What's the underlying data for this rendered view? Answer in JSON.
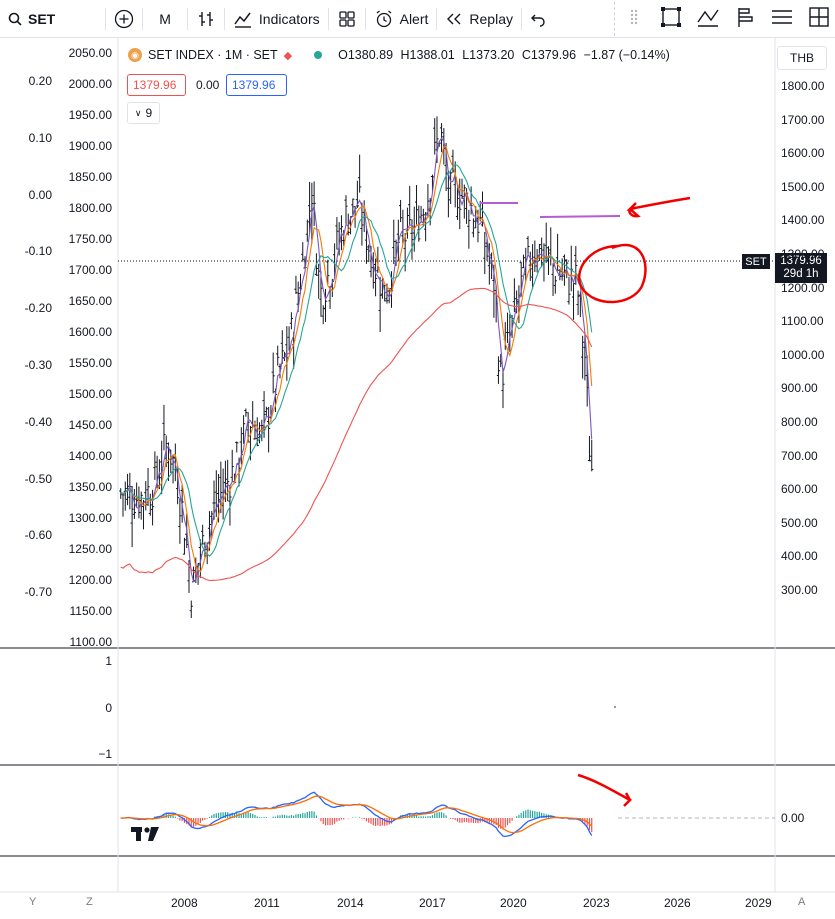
{
  "toolbar": {
    "symbol": "SET",
    "interval": "M",
    "indicators_label": "Indicators",
    "alert_label": "Alert",
    "replay_label": "Replay"
  },
  "legend": {
    "title": "SET INDEX · 1M · SET",
    "open": "O1380.89",
    "high": "H1388.01",
    "low": "L1373.20",
    "close": "C1379.96",
    "change": "−1.87 (−0.14%)",
    "box_left": "1379.96",
    "box_mid": "0.00",
    "box_right": "1379.96",
    "hidden_count": "9"
  },
  "currency": "THB",
  "price_tag": {
    "symbol": "SET",
    "price": "1379.96",
    "countdown": "29d 1h"
  },
  "left_axis": [
    "2050.00",
    "2000.00",
    "1950.00",
    "1900.00",
    "1850.00",
    "1800.00",
    "1750.00",
    "1700.00",
    "1650.00",
    "1600.00",
    "1550.00",
    "1500.00",
    "1450.00",
    "1400.00",
    "1350.00",
    "1300.00",
    "1250.00",
    "1200.00",
    "1150.00",
    "1100.00"
  ],
  "far_left_axis": [
    "0.20",
    "0.10",
    "0.00",
    "-0.10",
    "-0.20",
    "-0.30",
    "-0.40",
    "-0.50",
    "-0.60",
    "-0.70"
  ],
  "right_axis": [
    "1800.00",
    "1700.00",
    "1600.00",
    "1500.00",
    "1400.00",
    "1300.00",
    "1200.00",
    "1100.00",
    "1000.00",
    "900.00",
    "800.00",
    "700.00",
    "600.00",
    "500.00",
    "400.00",
    "300.00"
  ],
  "pane2_axis": [
    "1",
    "0",
    "−1"
  ],
  "macd_axis": "0.00",
  "time_axis": [
    "2008",
    "2011",
    "2014",
    "2017",
    "2020",
    "2023",
    "2026",
    "2029"
  ],
  "bottom_buttons": {
    "y": "Y",
    "z": "Z",
    "a": "A"
  },
  "colors": {
    "ma_red": "#ef5350",
    "ma_green": "#26a69a",
    "ma_orange": "#f57c00",
    "ma_purple": "#7e57c2",
    "macd_blue": "#2962ff",
    "signal_orange": "#ff6d00",
    "annotation": "#f20000",
    "hline": "#b45cd6"
  },
  "chart_data": {
    "type": "line",
    "title": "SET INDEX · 1M · SET",
    "x": [
      2006.5,
      2007,
      2007.5,
      2008,
      2008.3,
      2008.6,
      2008.9,
      2009.2,
      2009.6,
      2010,
      2010.5,
      2011,
      2011.5,
      2012,
      2012.5,
      2013,
      2013.3,
      2013.6,
      2014,
      2014.5,
      2015,
      2015.5,
      2016,
      2016.5,
      2017,
      2017.5,
      2018,
      2018.3,
      2018.6,
      2019,
      2019.5,
      2020,
      2020.2,
      2020.5,
      2021,
      2021.5,
      2022,
      2022.5,
      2023,
      2023.3,
      2023.5
    ],
    "values": [
      1340,
      1330,
      1350,
      1420,
      1380,
      1300,
      1180,
      1240,
      1300,
      1340,
      1380,
      1460,
      1430,
      1520,
      1580,
      1720,
      1830,
      1660,
      1700,
      1780,
      1810,
      1720,
      1660,
      1750,
      1760,
      1810,
      1930,
      1820,
      1830,
      1810,
      1770,
      1670,
      1520,
      1580,
      1680,
      1740,
      1710,
      1690,
      1680,
      1560,
      1379.96
    ],
    "ylim": [
      1100,
      2050
    ]
  }
}
